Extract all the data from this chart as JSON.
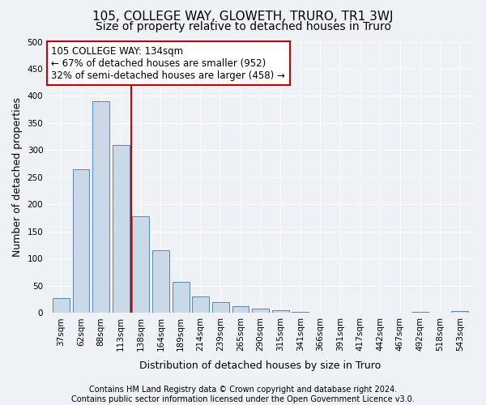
{
  "title": "105, COLLEGE WAY, GLOWETH, TRURO, TR1 3WJ",
  "subtitle": "Size of property relative to detached houses in Truro",
  "xlabel": "Distribution of detached houses by size in Truro",
  "ylabel": "Number of detached properties",
  "footer_line1": "Contains HM Land Registry data © Crown copyright and database right 2024.",
  "footer_line2": "Contains public sector information licensed under the Open Government Licence v3.0.",
  "annotation_line1": "105 COLLEGE WAY: 134sqm",
  "annotation_line2": "← 67% of detached houses are smaller (952)",
  "annotation_line3": "32% of semi-detached houses are larger (458) →",
  "categories": [
    "37sqm",
    "62sqm",
    "88sqm",
    "113sqm",
    "138sqm",
    "164sqm",
    "189sqm",
    "214sqm",
    "239sqm",
    "265sqm",
    "290sqm",
    "315sqm",
    "341sqm",
    "366sqm",
    "391sqm",
    "417sqm",
    "442sqm",
    "467sqm",
    "492sqm",
    "518sqm",
    "543sqm"
  ],
  "values": [
    28,
    265,
    390,
    310,
    178,
    115,
    58,
    30,
    20,
    12,
    8,
    5,
    2,
    1,
    0,
    0,
    0,
    0,
    2,
    0,
    3
  ],
  "vline_index": 4,
  "bar_color": "#c9d9e8",
  "bar_edge_color": "#5588aa",
  "vline_color": "#cc0000",
  "annotation_box_color": "white",
  "annotation_box_edge": "#cc0000",
  "ylim": [
    0,
    500
  ],
  "yticks": [
    0,
    50,
    100,
    150,
    200,
    250,
    300,
    350,
    400,
    450,
    500
  ],
  "background_color": "#eef2f7",
  "grid_color": "white",
  "title_fontsize": 11,
  "subtitle_fontsize": 10,
  "axis_label_fontsize": 9,
  "tick_fontsize": 7.5,
  "annotation_fontsize": 8.5,
  "footer_fontsize": 7
}
